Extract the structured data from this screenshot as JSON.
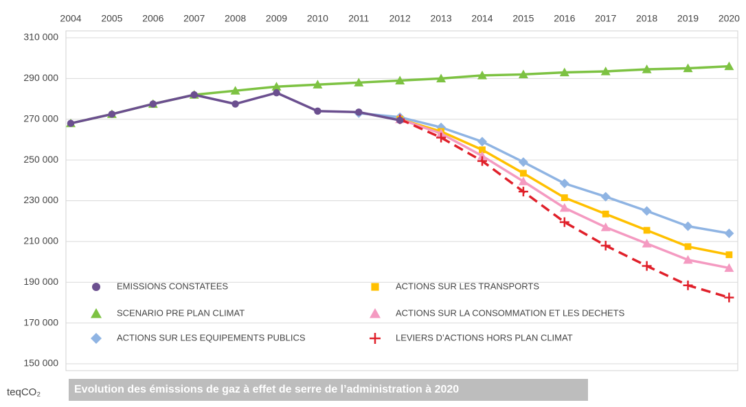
{
  "chart_data": {
    "type": "line",
    "title": "Evolution des émissions de gaz à effet de serre de l’administration à 2020",
    "y_label": "teqCO₂",
    "categories": [
      "2004",
      "2005",
      "2006",
      "2007",
      "2008",
      "2009",
      "2010",
      "2011",
      "2012",
      "2013",
      "2014",
      "2015",
      "2016",
      "2017",
      "2018",
      "2019",
      "2020"
    ],
    "ylim": [
      150000,
      310000
    ],
    "yticks": [
      {
        "value": 150000,
        "label": "150 000"
      },
      {
        "value": 170000,
        "label": "170 000"
      },
      {
        "value": 190000,
        "label": "190 000"
      },
      {
        "value": 210000,
        "label": "210 000"
      },
      {
        "value": 230000,
        "label": "230 000"
      },
      {
        "value": 250000,
        "label": "250 000"
      },
      {
        "value": 270000,
        "label": "270 000"
      },
      {
        "value": 290000,
        "label": "290 000"
      },
      {
        "value": 310000,
        "label": "310 000"
      }
    ],
    "grid": true,
    "series": [
      {
        "name": "SCENARIO PRE PLAN CLIMAT",
        "color": "#7dc242",
        "marker": "triangle",
        "dashed": false,
        "values": [
          268000,
          272500,
          277500,
          282000,
          284000,
          286000,
          287000,
          288000,
          289000,
          290000,
          291500,
          292000,
          293000,
          293500,
          294500,
          295000,
          296000
        ]
      },
      {
        "name": "ACTIONS SUR LES EQUIPEMENTS PUBLICS",
        "color": "#8fb4e3",
        "marker": "diamond",
        "dashed": false,
        "values": [
          null,
          null,
          null,
          null,
          null,
          null,
          null,
          273000,
          271000,
          266000,
          259000,
          249000,
          238500,
          232000,
          225000,
          217500,
          214000
        ]
      },
      {
        "name": "ACTIONS SUR LES TRANSPORTS",
        "color": "#ffc000",
        "marker": "square",
        "dashed": false,
        "values": [
          null,
          null,
          null,
          null,
          null,
          null,
          null,
          null,
          270000,
          264000,
          255000,
          243500,
          231500,
          223500,
          215500,
          207500,
          203500
        ]
      },
      {
        "name": "ACTIONS SUR LA CONSOMMATION ET LES DECHETS",
        "color": "#f49ac1",
        "marker": "triangle",
        "dashed": false,
        "values": [
          null,
          null,
          null,
          null,
          null,
          null,
          null,
          null,
          270000,
          263000,
          252000,
          239500,
          226500,
          217000,
          209000,
          201000,
          197000
        ]
      },
      {
        "name": "LEVIERS D’ACTIONS HORS PLAN CLIMAT",
        "color": "#e0202a",
        "marker": "plus",
        "dashed": true,
        "values": [
          null,
          null,
          null,
          null,
          null,
          null,
          null,
          null,
          270000,
          261000,
          249500,
          234500,
          219500,
          208000,
          198000,
          188500,
          182500
        ]
      },
      {
        "name": "EMISSIONS CONSTATEES",
        "color": "#6b4f8f",
        "marker": "circle",
        "dashed": false,
        "values": [
          268000,
          272500,
          277500,
          282000,
          277500,
          283000,
          274000,
          273500,
          269500,
          null,
          null,
          null,
          null,
          null,
          null,
          null,
          null
        ]
      }
    ]
  }
}
